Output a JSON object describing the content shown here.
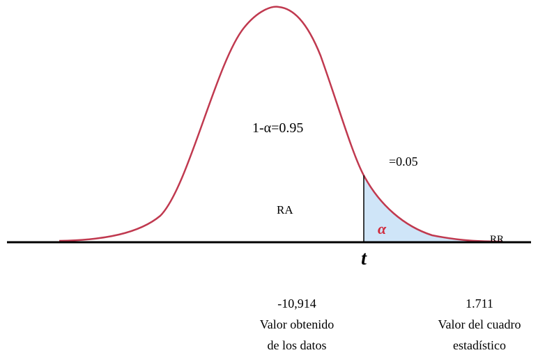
{
  "diagram": {
    "labels": {
      "confidence": "1-α=0.95",
      "significance": "=0.05",
      "acceptance_region": "RA",
      "alpha": "α",
      "rejection_region": "RR",
      "axis": "t"
    },
    "calculated": {
      "value": "-10,914",
      "line1": "Valor obtenido",
      "line2": "de los datos"
    },
    "critical": {
      "value": "1.711",
      "line1": "Valor del cuadro",
      "line2": "estadístico"
    }
  }
}
